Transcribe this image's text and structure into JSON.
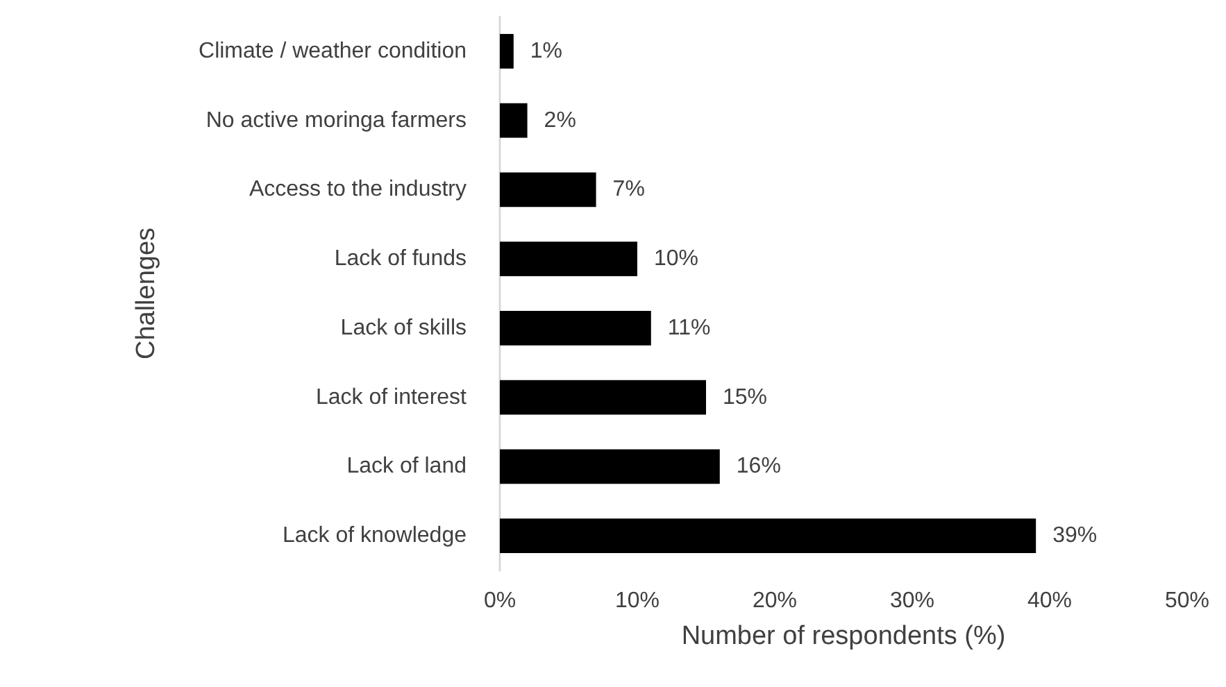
{
  "chart_data": {
    "type": "bar",
    "orientation": "horizontal",
    "categories": [
      "Climate / weather condition",
      "No active moringa farmers",
      "Access to the industry",
      "Lack of funds",
      "Lack of skills",
      "Lack of interest",
      "Lack of land",
      "Lack of knowledge"
    ],
    "values": [
      1,
      2,
      7,
      10,
      11,
      15,
      16,
      39
    ],
    "color": "#000000",
    "value_labels": [
      "1%",
      "2%",
      "7%",
      "10%",
      "11%",
      "15%",
      "16%",
      "39%"
    ],
    "xlim": [
      0,
      50
    ],
    "xticks": [
      {
        "value": 0,
        "label": "0%"
      },
      {
        "value": 10,
        "label": "10%"
      },
      {
        "value": 20,
        "label": "20%"
      },
      {
        "value": 30,
        "label": "30%"
      },
      {
        "value": 40,
        "label": "40%"
      },
      {
        "value": 50,
        "label": "50%"
      }
    ],
    "xlabel": "Number of respondents (%)",
    "ylabel": "Challenges",
    "grid": false
  }
}
